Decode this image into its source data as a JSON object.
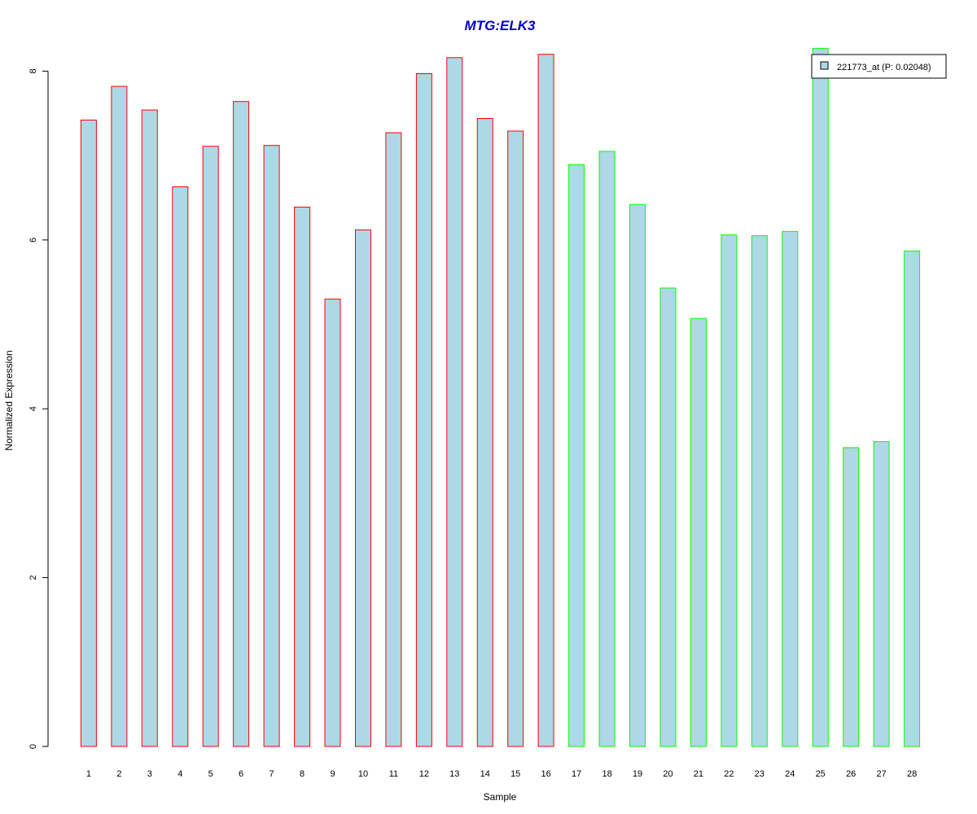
{
  "chart_data": {
    "type": "bar",
    "title": "MTG:ELK3",
    "title_color": "#0000CC",
    "xlabel": "Sample",
    "ylabel": "Normalized Expression",
    "ylim": [
      0,
      8.3
    ],
    "yticks": [
      0,
      2,
      4,
      6,
      8
    ],
    "categories": [
      "1",
      "2",
      "3",
      "4",
      "5",
      "6",
      "7",
      "8",
      "9",
      "10",
      "11",
      "12",
      "13",
      "14",
      "15",
      "16",
      "17",
      "18",
      "19",
      "20",
      "21",
      "22",
      "23",
      "24",
      "25",
      "26",
      "27",
      "28"
    ],
    "values": [
      7.42,
      7.82,
      7.54,
      6.63,
      7.11,
      7.64,
      7.12,
      6.39,
      5.3,
      6.12,
      7.27,
      7.97,
      8.16,
      7.44,
      7.29,
      8.2,
      6.89,
      7.05,
      6.42,
      5.43,
      5.07,
      6.06,
      6.05,
      6.1,
      8.27,
      3.54,
      3.61,
      5.87
    ],
    "groups": [
      "red",
      "red",
      "red",
      "red",
      "red",
      "red",
      "red",
      "red",
      "red",
      "red",
      "red",
      "red",
      "red",
      "red",
      "red",
      "red",
      "green",
      "green",
      "green",
      "green",
      "green",
      "green",
      "green",
      "green",
      "green",
      "green",
      "green",
      "green"
    ],
    "fill_color": "#ADD8E6",
    "group_colors": {
      "red": "#FF0000",
      "green": "#00FF00"
    },
    "legend": {
      "label": "221773_at (P: 0.02048)",
      "position": "top-right"
    },
    "grid": false
  }
}
